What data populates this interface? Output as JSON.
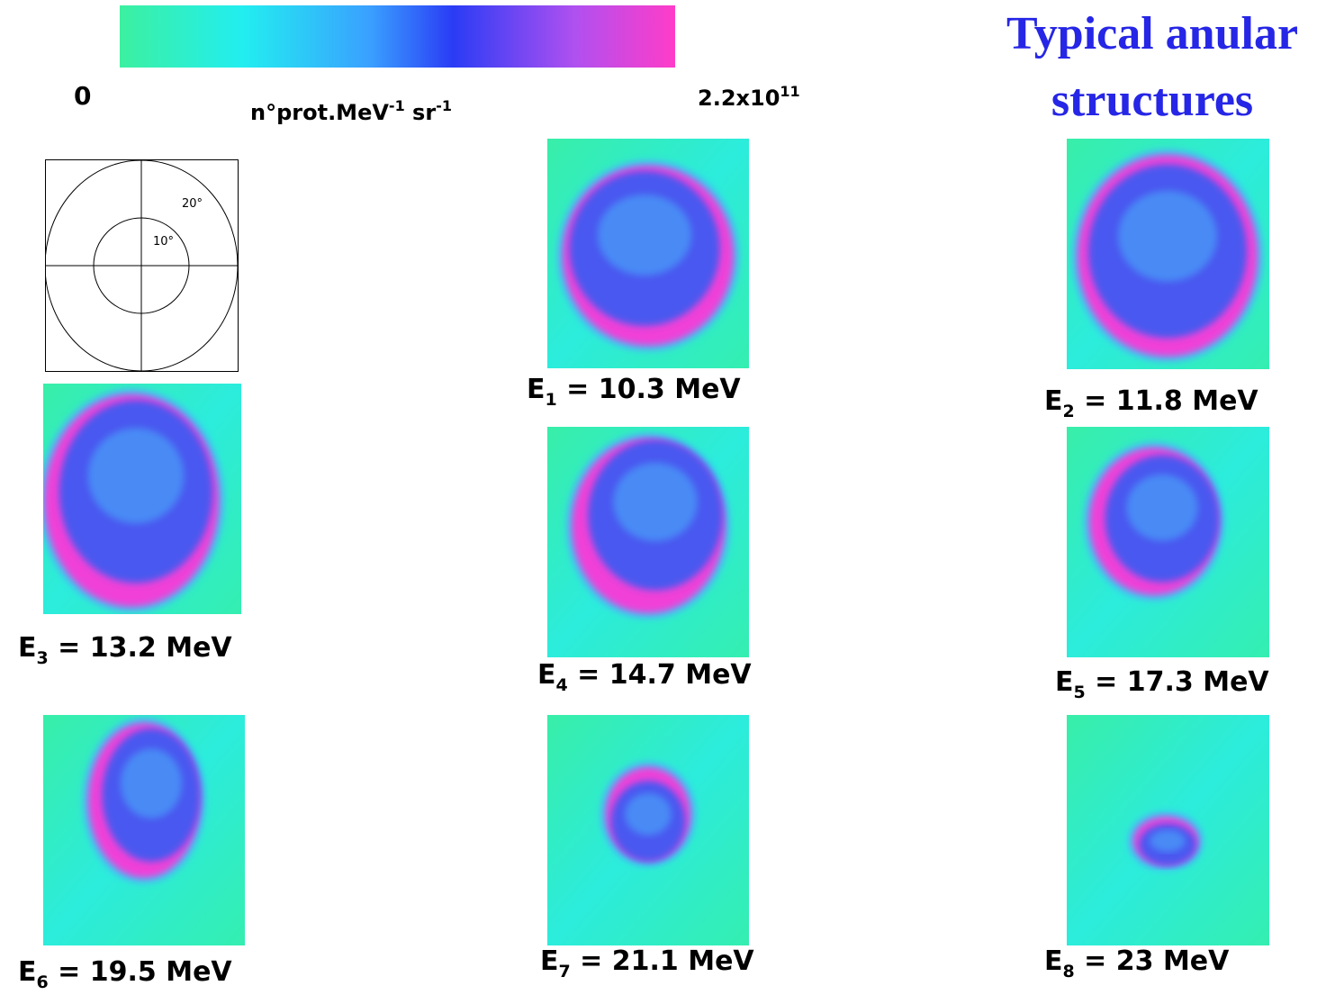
{
  "header": {
    "title_line1": "Typical anular",
    "title_line2": "structures"
  },
  "colorbar": {
    "min_label": "0",
    "unit": {
      "base": "n°prot.MeV",
      "exp1": "-1",
      "mid": " sr",
      "exp2": "-1"
    },
    "max_label": {
      "mantissa": "2.2x10",
      "exponent": "11"
    }
  },
  "reference": {
    "outer_label": "20°",
    "inner_label": "10°"
  },
  "panels": [
    {
      "symbol": "E",
      "subscript": "1",
      "rest": " = 10.3 MeV"
    },
    {
      "symbol": "E",
      "subscript": "2",
      "rest": " = 11.8 MeV"
    },
    {
      "symbol": "E",
      "subscript": "3",
      "rest": " = 13.2 MeV"
    },
    {
      "symbol": "E",
      "subscript": "4",
      "rest": " = 14.7 MeV"
    },
    {
      "symbol": "E",
      "subscript": "5",
      "rest": " = 17.3 MeV"
    },
    {
      "symbol": "E",
      "subscript": "6",
      "rest": " = 19.5 MeV"
    },
    {
      "symbol": "E",
      "subscript": "7",
      "rest": " = 21.1 MeV"
    },
    {
      "symbol": "E",
      "subscript": "8",
      "rest": " = 23 MeV"
    }
  ]
}
